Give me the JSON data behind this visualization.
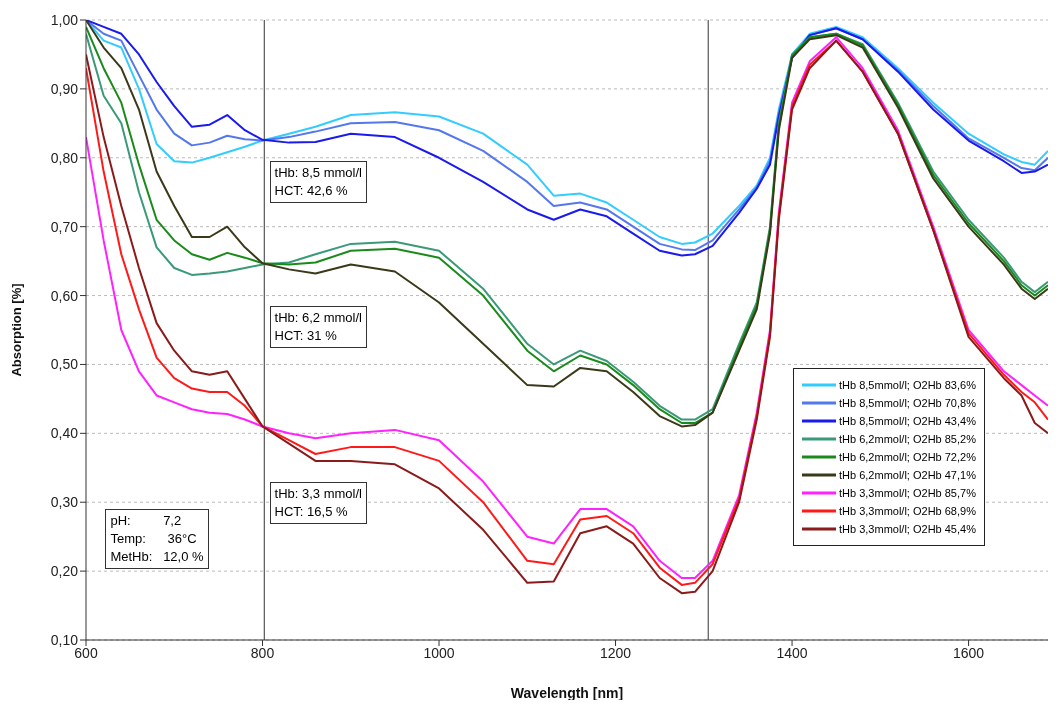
{
  "chart_data": {
    "type": "line",
    "xlabel": "Wavelength [nm]",
    "ylabel": "Absorption [%]",
    "x": [
      600,
      620,
      640,
      660,
      680,
      700,
      720,
      740,
      760,
      780,
      800,
      830,
      860,
      900,
      950,
      1000,
      1050,
      1100,
      1130,
      1160,
      1190,
      1220,
      1250,
      1275,
      1290,
      1310,
      1340,
      1360,
      1375,
      1385,
      1400,
      1420,
      1450,
      1480,
      1520,
      1560,
      1600,
      1640,
      1660,
      1675,
      1690
    ],
    "series": [
      {
        "name": "tHb 8,5mmol/l; O2Hb 83,6%",
        "color": "#33ccff",
        "values": [
          1.0,
          0.97,
          0.96,
          0.9,
          0.82,
          0.795,
          0.793,
          0.8,
          0.808,
          0.816,
          0.825,
          0.835,
          0.845,
          0.862,
          0.866,
          0.86,
          0.835,
          0.79,
          0.745,
          0.748,
          0.735,
          0.71,
          0.685,
          0.675,
          0.677,
          0.69,
          0.73,
          0.76,
          0.8,
          0.87,
          0.95,
          0.98,
          0.99,
          0.975,
          0.93,
          0.88,
          0.835,
          0.805,
          0.794,
          0.79,
          0.81
        ]
      },
      {
        "name": "tHb 8,5mmol/l; O2Hb 70,8%",
        "color": "#5577ee",
        "values": [
          1.0,
          0.98,
          0.97,
          0.92,
          0.87,
          0.835,
          0.818,
          0.822,
          0.832,
          0.827,
          0.825,
          0.83,
          0.838,
          0.85,
          0.852,
          0.84,
          0.81,
          0.765,
          0.73,
          0.735,
          0.725,
          0.7,
          0.675,
          0.667,
          0.666,
          0.68,
          0.725,
          0.757,
          0.795,
          0.865,
          0.945,
          0.978,
          0.988,
          0.972,
          0.927,
          0.875,
          0.828,
          0.8,
          0.785,
          0.782,
          0.8
        ]
      },
      {
        "name": "tHb 8,5mmol/l; O2Hb 43,4%",
        "color": "#1a1aee",
        "values": [
          1.0,
          0.99,
          0.98,
          0.95,
          0.91,
          0.875,
          0.845,
          0.848,
          0.862,
          0.84,
          0.826,
          0.822,
          0.823,
          0.835,
          0.83,
          0.8,
          0.765,
          0.725,
          0.71,
          0.725,
          0.715,
          0.69,
          0.665,
          0.658,
          0.66,
          0.672,
          0.72,
          0.755,
          0.79,
          0.86,
          0.945,
          0.978,
          0.988,
          0.972,
          0.925,
          0.87,
          0.825,
          0.795,
          0.778,
          0.78,
          0.79
        ]
      },
      {
        "name": "tHb 6,2mmol/l; O2Hb 85,2%",
        "color": "#3a9a78",
        "values": [
          0.98,
          0.89,
          0.85,
          0.75,
          0.67,
          0.64,
          0.63,
          0.632,
          0.635,
          0.64,
          0.645,
          0.648,
          0.66,
          0.675,
          0.678,
          0.665,
          0.61,
          0.53,
          0.5,
          0.52,
          0.505,
          0.475,
          0.44,
          0.42,
          0.42,
          0.435,
          0.53,
          0.59,
          0.7,
          0.85,
          0.95,
          0.975,
          0.98,
          0.965,
          0.88,
          0.78,
          0.71,
          0.655,
          0.62,
          0.605,
          0.62
        ]
      },
      {
        "name": "tHb 6,2mmol/l; O2Hb 72,2%",
        "color": "#1a8a1a",
        "values": [
          0.99,
          0.93,
          0.88,
          0.79,
          0.71,
          0.68,
          0.66,
          0.652,
          0.662,
          0.655,
          0.647,
          0.645,
          0.648,
          0.665,
          0.668,
          0.655,
          0.6,
          0.52,
          0.49,
          0.513,
          0.5,
          0.47,
          0.435,
          0.415,
          0.415,
          0.43,
          0.525,
          0.585,
          0.695,
          0.845,
          0.948,
          0.975,
          0.98,
          0.963,
          0.877,
          0.775,
          0.705,
          0.65,
          0.615,
          0.6,
          0.615
        ]
      },
      {
        "name": "tHb 6,2mmol/l; O2Hb 47,1%",
        "color": "#3a3a1a",
        "values": [
          1.0,
          0.96,
          0.93,
          0.87,
          0.78,
          0.73,
          0.685,
          0.685,
          0.7,
          0.67,
          0.647,
          0.638,
          0.632,
          0.645,
          0.635,
          0.59,
          0.53,
          0.47,
          0.468,
          0.495,
          0.49,
          0.46,
          0.425,
          0.41,
          0.412,
          0.43,
          0.52,
          0.58,
          0.69,
          0.84,
          0.945,
          0.972,
          0.978,
          0.96,
          0.873,
          0.77,
          0.7,
          0.645,
          0.61,
          0.595,
          0.61
        ]
      },
      {
        "name": "tHb 3,3mmol/l; O2Hb 85,7%",
        "color": "#ff22ff",
        "values": [
          0.83,
          0.68,
          0.55,
          0.49,
          0.455,
          0.445,
          0.435,
          0.43,
          0.428,
          0.42,
          0.41,
          0.4,
          0.393,
          0.4,
          0.405,
          0.39,
          0.33,
          0.25,
          0.24,
          0.29,
          0.29,
          0.265,
          0.215,
          0.19,
          0.19,
          0.215,
          0.31,
          0.43,
          0.55,
          0.72,
          0.88,
          0.94,
          0.975,
          0.93,
          0.84,
          0.7,
          0.55,
          0.49,
          0.47,
          0.455,
          0.44
        ]
      },
      {
        "name": "tHb 3,3mmol/l; O2Hb 68,9%",
        "color": "#ff1a1a",
        "values": [
          0.93,
          0.78,
          0.66,
          0.58,
          0.51,
          0.48,
          0.465,
          0.46,
          0.46,
          0.44,
          0.41,
          0.39,
          0.37,
          0.38,
          0.38,
          0.36,
          0.3,
          0.215,
          0.21,
          0.275,
          0.28,
          0.255,
          0.205,
          0.18,
          0.183,
          0.21,
          0.305,
          0.425,
          0.545,
          0.715,
          0.875,
          0.935,
          0.97,
          0.925,
          0.835,
          0.695,
          0.545,
          0.485,
          0.46,
          0.445,
          0.42
        ]
      },
      {
        "name": "tHb 3,3mmol/l; O2Hb 45,4%",
        "color": "#8b1a1a",
        "values": [
          0.95,
          0.83,
          0.73,
          0.64,
          0.56,
          0.52,
          0.49,
          0.485,
          0.49,
          0.45,
          0.41,
          0.385,
          0.36,
          0.36,
          0.355,
          0.32,
          0.26,
          0.183,
          0.185,
          0.255,
          0.265,
          0.24,
          0.19,
          0.168,
          0.17,
          0.2,
          0.3,
          0.42,
          0.54,
          0.71,
          0.87,
          0.93,
          0.97,
          0.925,
          0.835,
          0.695,
          0.54,
          0.48,
          0.455,
          0.415,
          0.4
        ]
      }
    ],
    "xlim": [
      600,
      1690
    ],
    "xticks": [
      600,
      800,
      1000,
      1200,
      1400,
      1600
    ],
    "ylim": [
      0.1,
      1.0
    ],
    "yticks": [
      {
        "value": 0.1,
        "label": "0,10"
      },
      {
        "value": 0.2,
        "label": "0,20"
      },
      {
        "value": 0.3,
        "label": "0,30"
      },
      {
        "value": 0.4,
        "label": "0,40"
      },
      {
        "value": 0.5,
        "label": "0,50"
      },
      {
        "value": 0.6,
        "label": "0,60"
      },
      {
        "value": 0.7,
        "label": "0,70"
      },
      {
        "value": 0.8,
        "label": "0,80"
      },
      {
        "value": 0.9,
        "label": "0,90"
      },
      {
        "value": 1.0,
        "label": "1,00"
      }
    ],
    "grid": "y",
    "legend": "right",
    "ref_lines": [
      {
        "axis": "x",
        "value": 802,
        "color": "#333333"
      },
      {
        "axis": "x",
        "value": 1305,
        "color": "#333333"
      }
    ],
    "annotations": [
      "tHb: 8,5 mmol/l\nHCT: 42,6 %",
      "tHb: 6,2 mmol/l\nHCT: 31 %",
      "tHb: 3,3 mmol/l\nHCT: 16,5 %",
      "pH:         7,2\nTemp:      36°C\nMetHb:   12,0 %"
    ]
  }
}
